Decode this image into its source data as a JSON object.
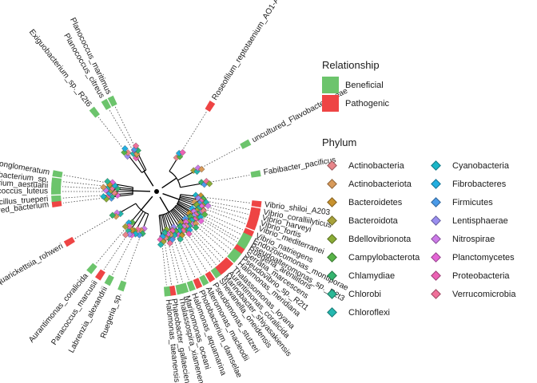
{
  "chart_data": {
    "type": "circular-phylogenetic-tree",
    "legends": {
      "relationship": {
        "title": "Relationship",
        "entries": [
          {
            "label": "Beneficial",
            "color": "#6cc46c"
          },
          {
            "label": "Pathogenic",
            "color": "#ee4444"
          }
        ]
      },
      "phylum": {
        "title": "Phylum",
        "entries": [
          {
            "label": "Actinobacteria",
            "color": "#e8858a"
          },
          {
            "label": "Actinobacteriota",
            "color": "#d89a5a"
          },
          {
            "label": "Bacteroidetes",
            "color": "#c8922e"
          },
          {
            "label": "Bacteroidota",
            "color": "#a8a23a"
          },
          {
            "label": "Bdellovibrionota",
            "color": "#8aac36"
          },
          {
            "label": "Campylobacterota",
            "color": "#58b448"
          },
          {
            "label": "Chlamydiae",
            "color": "#34b46e"
          },
          {
            "label": "Chlorobi",
            "color": "#2cb896"
          },
          {
            "label": "Chloroflexi",
            "color": "#24b8b0"
          },
          {
            "label": "Cyanobacteria",
            "color": "#1ab6c8"
          },
          {
            "label": "Fibrobacteres",
            "color": "#22aee0"
          },
          {
            "label": "Firmicutes",
            "color": "#4a9ae8"
          },
          {
            "label": "Lentisphaerae",
            "color": "#9a8ef0"
          },
          {
            "label": "Nitrospirae",
            "color": "#cc7ae8"
          },
          {
            "label": "Planctomycetes",
            "color": "#e466d6"
          },
          {
            "label": "Proteobacteria",
            "color": "#ec62b4"
          },
          {
            "label": "Verrucomicrobia",
            "color": "#f0709a"
          }
        ]
      }
    },
    "tips": [
      {
        "label": "Roseofilum_reptotaenium_AO1-A",
        "relationship": "Pathogenic"
      },
      {
        "label": "uncultured_Flavobacteriaceae",
        "relationship": "Beneficial"
      },
      {
        "label": "Fabibacter_pacificus",
        "relationship": "Beneficial"
      },
      {
        "label": "Vibrio_shiloi_A203",
        "relationship": "Pathogenic"
      },
      {
        "label": "Vibrio_coralliilyticus",
        "relationship": "Pathogenic"
      },
      {
        "label": "Vibrio_harveyi",
        "relationship": "Pathogenic"
      },
      {
        "label": "Vibrio_fortis",
        "relationship": "Pathogenic"
      },
      {
        "label": "Vibrio_mediterranei",
        "relationship": "Pathogenic"
      },
      {
        "label": "Vibrio_natriegens",
        "relationship": "Pathogenic"
      },
      {
        "label": "Endozoicomonas_montiporae",
        "relationship": "Beneficial"
      },
      {
        "label": "Pseudoalteromonas_sp._R2t3",
        "relationship": "Beneficial"
      },
      {
        "label": "Ruegeria_arenilitoris",
        "relationship": "Beneficial"
      },
      {
        "label": "Serratia_marcescens",
        "relationship": "Pathogenic"
      },
      {
        "label": "Pseudovibrio_sp._R2t1",
        "relationship": "Beneficial"
      },
      {
        "label": "Halomonas_meridiana",
        "relationship": "Beneficial"
      },
      {
        "label": "Thalassomonas_loyana",
        "relationship": "Pathogenic"
      },
      {
        "label": "Aurantimonas_coralicida",
        "relationship": "Pathogenic"
      },
      {
        "label": "Marinobacter_shiyasakiensis",
        "relationship": "Pathogenic"
      },
      {
        "label": "Shewanella_oneidensis",
        "relationship": "Beneficial"
      },
      {
        "label": "Pseudomonas_stutzeri",
        "relationship": "Pathogenic"
      },
      {
        "label": "Alteromonas_macleodii",
        "relationship": "Beneficial"
      },
      {
        "label": "Photobacterium_damselae",
        "relationship": "Pathogenic"
      },
      {
        "label": "Halomonas_aquamarina",
        "relationship": "Beneficial"
      },
      {
        "label": "Marinomonas_oceani",
        "relationship": "Beneficial"
      },
      {
        "label": "Thalassospira_xiamenensis",
        "relationship": "Beneficial"
      },
      {
        "label": "Phaeobacter_gallaeciensis",
        "relationship": "Pathogenic"
      },
      {
        "label": "Halomonas_taeanensis",
        "relationship": "Beneficial"
      },
      {
        "label": "Ruegeria_sp.",
        "relationship": "Beneficial"
      },
      {
        "label": "Labrenzia_alexandrii",
        "relationship": "Beneficial"
      },
      {
        "label": "Paracoccus_marcusii",
        "relationship": "Pathogenic"
      },
      {
        "label": "Aurantimonas_coralicida",
        "relationship": "Beneficial"
      },
      {
        "label": "Candidatus_Aquarickettsia_rohweri",
        "relationship": "Pathogenic"
      },
      {
        "label": "uncultured_bacterium",
        "relationship": "Pathogenic"
      },
      {
        "label": "Halobacillus_trueperi",
        "relationship": "Beneficial"
      },
      {
        "label": "Micrococcus_luteus",
        "relationship": "Beneficial"
      },
      {
        "label": "Exiguobacterium_aestuarii",
        "relationship": "Beneficial"
      },
      {
        "label": "Microbacterium_sp.",
        "relationship": "Beneficial"
      },
      {
        "label": "Curtobacterium_conglomeratum",
        "relationship": "Beneficial"
      },
      {
        "label": "Exiguobacterium_sp._R2t6",
        "relationship": "Beneficial"
      },
      {
        "label": "Planococcus_citreus",
        "relationship": "Beneficial"
      },
      {
        "label": "Planococcus_maritimus",
        "relationship": "Beneficial"
      }
    ]
  }
}
